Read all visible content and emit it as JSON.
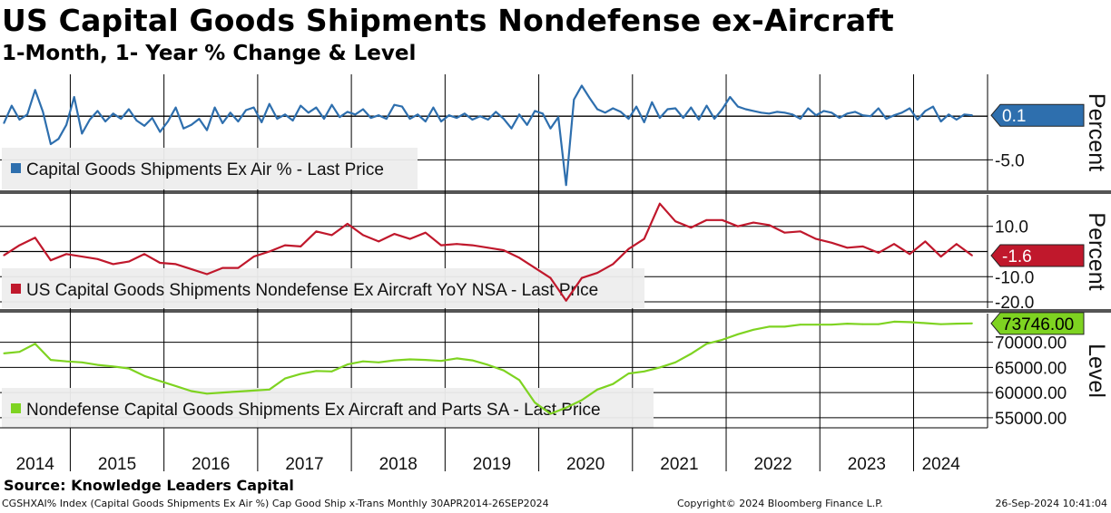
{
  "title": "US Capital Goods Shipments Nondefense ex-Aircraft",
  "subtitle": "1-Month, 1- Year % Change & Level",
  "source": "Source: Knowledge Leaders Capital",
  "footer": {
    "left": "CGSHXAI% Index (Capital Goods Shipments Ex Air %) Cap Good Ship x-Trans  Monthly 30APR2014-26SEP2024",
    "center": "Copyright© 2024 Bloomberg Finance L.P.",
    "right": "26-Sep-2024 10:41:04"
  },
  "colors": {
    "mom": "#2e6fae",
    "yoy": "#c0182c",
    "level": "#7ed321",
    "grid": "#000000",
    "panel_separator": "#555555"
  },
  "chart_data": [
    {
      "type": "line",
      "panel": "1-month % change",
      "legend": "Capital Goods Shipments Ex Air % - Last Price",
      "ylabel": "Percent",
      "yticks": [
        -5.0
      ],
      "ytick_labels": [
        "-5.0"
      ],
      "ylim": [
        -8.5,
        4.8
      ],
      "reference_line": 0,
      "last_value": 0.1,
      "last_label": "0.1",
      "grid": true,
      "legend_position": "bottom-left",
      "x": [
        "2014-04",
        "2014-05",
        "2014-06",
        "2014-07",
        "2014-08",
        "2014-09",
        "2014-10",
        "2014-11",
        "2014-12",
        "2015-01",
        "2015-02",
        "2015-03",
        "2015-04",
        "2015-05",
        "2015-06",
        "2015-07",
        "2015-08",
        "2015-09",
        "2015-10",
        "2015-11",
        "2015-12",
        "2016-01",
        "2016-02",
        "2016-03",
        "2016-04",
        "2016-05",
        "2016-06",
        "2016-07",
        "2016-08",
        "2016-09",
        "2016-10",
        "2016-11",
        "2016-12",
        "2017-01",
        "2017-02",
        "2017-03",
        "2017-04",
        "2017-05",
        "2017-06",
        "2017-07",
        "2017-08",
        "2017-09",
        "2017-10",
        "2017-11",
        "2017-12",
        "2018-01",
        "2018-02",
        "2018-03",
        "2018-04",
        "2018-05",
        "2018-06",
        "2018-07",
        "2018-08",
        "2018-09",
        "2018-10",
        "2018-11",
        "2018-12",
        "2019-01",
        "2019-02",
        "2019-03",
        "2019-04",
        "2019-05",
        "2019-06",
        "2019-07",
        "2019-08",
        "2019-09",
        "2019-10",
        "2019-11",
        "2019-12",
        "2020-01",
        "2020-02",
        "2020-03",
        "2020-04",
        "2020-05",
        "2020-06",
        "2020-07",
        "2020-08",
        "2020-09",
        "2020-10",
        "2020-11",
        "2020-12",
        "2021-01",
        "2021-02",
        "2021-03",
        "2021-04",
        "2021-05",
        "2021-06",
        "2021-07",
        "2021-08",
        "2021-09",
        "2021-10",
        "2021-11",
        "2021-12",
        "2022-01",
        "2022-02",
        "2022-03",
        "2022-04",
        "2022-05",
        "2022-06",
        "2022-07",
        "2022-08",
        "2022-09",
        "2022-10",
        "2022-11",
        "2022-12",
        "2023-01",
        "2023-02",
        "2023-03",
        "2023-04",
        "2023-05",
        "2023-06",
        "2023-07",
        "2023-08",
        "2023-09",
        "2023-10",
        "2023-11",
        "2023-12",
        "2024-01",
        "2024-02",
        "2024-03",
        "2024-04",
        "2024-05",
        "2024-06",
        "2024-07",
        "2024-08"
      ],
      "values": [
        -0.8,
        1.2,
        -0.4,
        0.2,
        3.0,
        0.5,
        -3.2,
        -2.6,
        -1.0,
        2.2,
        -2.0,
        -0.4,
        0.6,
        -0.6,
        0.3,
        -0.3,
        0.8,
        -0.5,
        -1.1,
        -0.2,
        -1.8,
        -0.6,
        1.0,
        -1.4,
        -1.0,
        -0.3,
        -1.6,
        1.0,
        -0.8,
        0.4,
        -0.6,
        0.7,
        1.0,
        -0.7,
        1.4,
        -0.3,
        0.2,
        -0.5,
        1.2,
        0.4,
        1.0,
        -0.3,
        1.3,
        -0.1,
        0.5,
        0.2,
        0.8,
        -0.2,
        0.1,
        -0.3,
        1.3,
        1.1,
        -0.3,
        0.2,
        -0.6,
        1.0,
        -0.6,
        0.1,
        -0.2,
        0.3,
        -0.4,
        0.0,
        -0.4,
        0.5,
        -0.3,
        -1.4,
        0.2,
        -1.0,
        0.6,
        0.3,
        -1.4,
        -0.1,
        -7.9,
        1.9,
        3.5,
        2.1,
        0.8,
        0.4,
        0.9,
        0.5,
        -0.3,
        1.1,
        -0.7,
        1.6,
        -0.2,
        0.8,
        0.9,
        -0.2,
        1.0,
        -0.4,
        1.2,
        -0.3,
        0.8,
        2.2,
        1.1,
        0.8,
        0.6,
        0.4,
        0.3,
        0.5,
        0.4,
        0.2,
        -0.3,
        0.9,
        0.1,
        0.6,
        0.4,
        -0.2,
        0.3,
        0.5,
        0.1,
        0.0,
        0.9,
        -0.3,
        0.1,
        0.4,
        0.9,
        -0.4,
        0.6,
        1.1,
        -0.6,
        0.2,
        -0.4,
        0.2,
        0.1
      ]
    },
    {
      "type": "line",
      "panel": "1-year % change",
      "legend": "US Capital Goods Shipments Nondefense Ex Aircraft YoY NSA - Last Price",
      "ylabel": "Percent",
      "yticks": [
        10.0,
        -10.0,
        -20.0
      ],
      "ytick_labels": [
        "10.0",
        "-10.0",
        "-20.0"
      ],
      "ylim": [
        -22.5,
        22.5
      ],
      "reference_line": 0,
      "last_value": -1.6,
      "last_label": "-1.6",
      "grid": true,
      "legend_position": "bottom-left",
      "x": [
        "2014-04",
        "2014-06",
        "2014-08",
        "2014-10",
        "2014-12",
        "2015-02",
        "2015-04",
        "2015-06",
        "2015-08",
        "2015-10",
        "2015-12",
        "2016-02",
        "2016-04",
        "2016-06",
        "2016-08",
        "2016-10",
        "2016-12",
        "2017-02",
        "2017-04",
        "2017-06",
        "2017-08",
        "2017-10",
        "2017-12",
        "2018-02",
        "2018-04",
        "2018-06",
        "2018-08",
        "2018-10",
        "2018-12",
        "2019-02",
        "2019-04",
        "2019-06",
        "2019-08",
        "2019-10",
        "2019-12",
        "2020-02",
        "2020-04",
        "2020-06",
        "2020-08",
        "2020-10",
        "2020-12",
        "2021-02",
        "2021-04",
        "2021-06",
        "2021-08",
        "2021-10",
        "2021-12",
        "2022-02",
        "2022-04",
        "2022-06",
        "2022-08",
        "2022-10",
        "2022-12",
        "2023-02",
        "2023-04",
        "2023-06",
        "2023-08",
        "2023-10",
        "2023-12",
        "2024-02",
        "2024-04",
        "2024-06",
        "2024-08"
      ],
      "values": [
        -1.5,
        2.5,
        5.5,
        -3.5,
        -1.0,
        -2.0,
        -3.0,
        -5.0,
        -4.0,
        -1.0,
        -4.5,
        -5.0,
        -7.0,
        -9.0,
        -6.5,
        -6.5,
        -2.0,
        0.0,
        2.5,
        2.0,
        8.0,
        6.5,
        11.0,
        6.5,
        4.0,
        7.0,
        5.0,
        7.5,
        2.5,
        3.0,
        2.5,
        1.5,
        0.5,
        -2.5,
        -6.5,
        -10.5,
        -19.5,
        -10.5,
        -8.5,
        -5.0,
        1.0,
        5.0,
        19.0,
        12.0,
        9.5,
        12.5,
        12.5,
        10.0,
        11.5,
        10.5,
        7.5,
        8.0,
        5.0,
        3.5,
        1.5,
        2.0,
        -0.5,
        3.0,
        -1.0,
        4.0,
        -2.0,
        3.0,
        -1.6
      ]
    },
    {
      "type": "line",
      "panel": "level",
      "legend": "Nondefense Capital Goods Shipments Ex Aircraft and Parts SA - Last Price",
      "ylabel": "Level",
      "yticks": [
        70000,
        65000,
        60000,
        55000
      ],
      "ytick_labels": [
        "70000.00",
        "65000.00",
        "60000.00",
        "55000.00"
      ],
      "ylim": [
        53000,
        75700
      ],
      "last_value": 73746.0,
      "last_label": "73746.00",
      "grid": true,
      "legend_position": "bottom-left",
      "x": [
        "2014-04",
        "2014-06",
        "2014-08",
        "2014-10",
        "2014-12",
        "2015-02",
        "2015-04",
        "2015-06",
        "2015-08",
        "2015-10",
        "2015-12",
        "2016-02",
        "2016-04",
        "2016-06",
        "2016-08",
        "2016-10",
        "2016-12",
        "2017-02",
        "2017-04",
        "2017-06",
        "2017-08",
        "2017-10",
        "2017-12",
        "2018-02",
        "2018-04",
        "2018-06",
        "2018-08",
        "2018-10",
        "2018-12",
        "2019-02",
        "2019-04",
        "2019-06",
        "2019-08",
        "2019-10",
        "2019-12",
        "2020-02",
        "2020-04",
        "2020-06",
        "2020-08",
        "2020-10",
        "2020-12",
        "2021-02",
        "2021-04",
        "2021-06",
        "2021-08",
        "2021-10",
        "2021-12",
        "2022-02",
        "2022-04",
        "2022-06",
        "2022-08",
        "2022-10",
        "2022-12",
        "2023-02",
        "2023-04",
        "2023-06",
        "2023-08",
        "2023-10",
        "2023-12",
        "2024-02",
        "2024-04",
        "2024-06",
        "2024-08"
      ],
      "values": [
        67800,
        68100,
        69700,
        66500,
        66200,
        66000,
        65500,
        65200,
        64800,
        63300,
        62300,
        61300,
        60300,
        59800,
        60000,
        60200,
        60400,
        60600,
        62800,
        63700,
        64300,
        64200,
        65600,
        66200,
        66000,
        66400,
        66600,
        66500,
        66300,
        66800,
        66400,
        65500,
        64400,
        62500,
        58000,
        55800,
        57000,
        58500,
        60600,
        61700,
        63800,
        64200,
        65000,
        66000,
        67700,
        69700,
        70500,
        71600,
        72500,
        73100,
        73100,
        73500,
        73500,
        73500,
        73700,
        73600,
        73600,
        74100,
        74000,
        73800,
        73600,
        73700,
        73746
      ]
    }
  ],
  "year_labels": [
    "2014",
    "2015",
    "2016",
    "2017",
    "2018",
    "2019",
    "2020",
    "2021",
    "2022",
    "2023",
    "2024"
  ]
}
